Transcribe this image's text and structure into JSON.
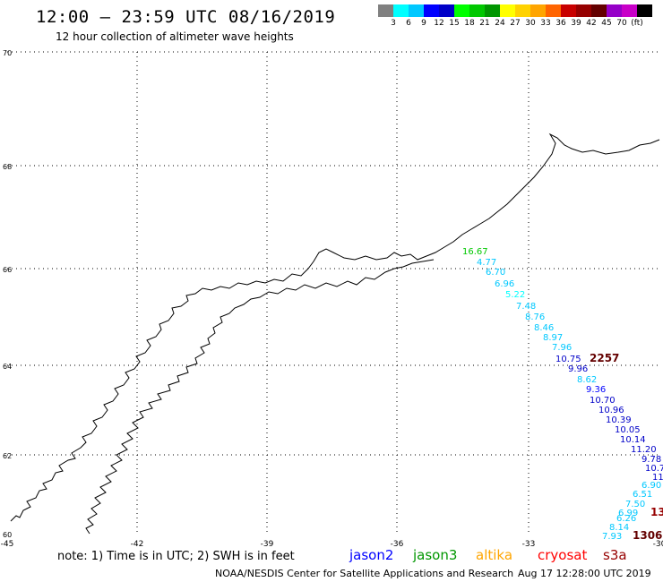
{
  "title": "12:00 – 23:59 UTC 08/16/2019",
  "subtitle": "12 hour collection of altimeter wave heights",
  "scale": {
    "colors": [
      "#808080",
      "#00ffff",
      "#00c8ff",
      "#0000ff",
      "#0000c8",
      "#00ff00",
      "#00c800",
      "#009600",
      "#ffff00",
      "#ffd200",
      "#ffa500",
      "#ff6400",
      "#c80000",
      "#960000",
      "#640000",
      "#9600c8",
      "#c800c8",
      "#000000"
    ],
    "labels": [
      "3",
      "6",
      "9",
      "12",
      "15",
      "18",
      "21",
      "24",
      "27",
      "30",
      "33",
      "36",
      "39",
      "42",
      "45",
      "70",
      "(ft)"
    ]
  },
  "map": {
    "lon_ticks": [
      "-45",
      "-42",
      "-39",
      "-36",
      "-33",
      "-30"
    ],
    "lat_ticks": [
      "70",
      "68",
      "66",
      "64",
      "62",
      "60"
    ],
    "labels": [
      {
        "text": "16.67",
        "color": "#00c800"
      },
      {
        "text": "4.77",
        "color": "#00c8ff"
      },
      {
        "text": "6.70",
        "color": "#00c8ff"
      },
      {
        "text": "6.96",
        "color": "#00c8ff"
      },
      {
        "text": "5.22",
        "color": "#00ffff"
      },
      {
        "text": "7.48",
        "color": "#00c8ff"
      },
      {
        "text": "8.76",
        "color": "#00c8ff"
      },
      {
        "text": "8.46",
        "color": "#00c8ff"
      },
      {
        "text": "8.97",
        "color": "#00c8ff"
      },
      {
        "text": "7.96",
        "color": "#00c8ff"
      },
      {
        "text": "10.75",
        "color": "#0000c8"
      },
      {
        "text": "2257",
        "color": "#640000"
      },
      {
        "text": "9.96",
        "color": "#0000c8"
      },
      {
        "text": "8.62",
        "color": "#00c8ff"
      },
      {
        "text": "9.36",
        "color": "#0000ff"
      },
      {
        "text": "10.70",
        "color": "#0000c8"
      },
      {
        "text": "10.96",
        "color": "#0000c8"
      },
      {
        "text": "10.39",
        "color": "#0000c8"
      },
      {
        "text": "10.05",
        "color": "#0000c8"
      },
      {
        "text": "10.14",
        "color": "#0000c8"
      },
      {
        "text": "11.20",
        "color": "#0000c8"
      },
      {
        "text": "9.78",
        "color": "#0000c8"
      },
      {
        "text": "10.7",
        "color": "#0000c8"
      },
      {
        "text": "11",
        "color": "#0000c8"
      },
      {
        "text": "6.90",
        "color": "#00c8ff"
      },
      {
        "text": "6.51",
        "color": "#00c8ff"
      },
      {
        "text": "7.50",
        "color": "#00c8ff"
      },
      {
        "text": "6.99",
        "color": "#00c8ff"
      },
      {
        "text": "13",
        "color": "#960000"
      },
      {
        "text": "6.26",
        "color": "#00c8ff"
      },
      {
        "text": "8.14",
        "color": "#00c8ff"
      },
      {
        "text": "7.93",
        "color": "#00c8ff"
      },
      {
        "text": "1306",
        "color": "#640000"
      }
    ]
  },
  "note": "note:  1) Time is in UTC;  2) SWH is in feet",
  "satellites": [
    {
      "name": "jason2",
      "color": "#0000ff"
    },
    {
      "name": "jason3",
      "color": "#009600"
    },
    {
      "name": "altika",
      "color": "#ffa500"
    },
    {
      "name": "cryosat",
      "color": "#ff0000"
    },
    {
      "name": "s3a",
      "color": "#960000"
    }
  ],
  "footer": {
    "center": "NOAA/NESDIS Center for Satellite Applications and Research",
    "timestamp": "Aug 17 12:28:00 UTC 2019"
  }
}
